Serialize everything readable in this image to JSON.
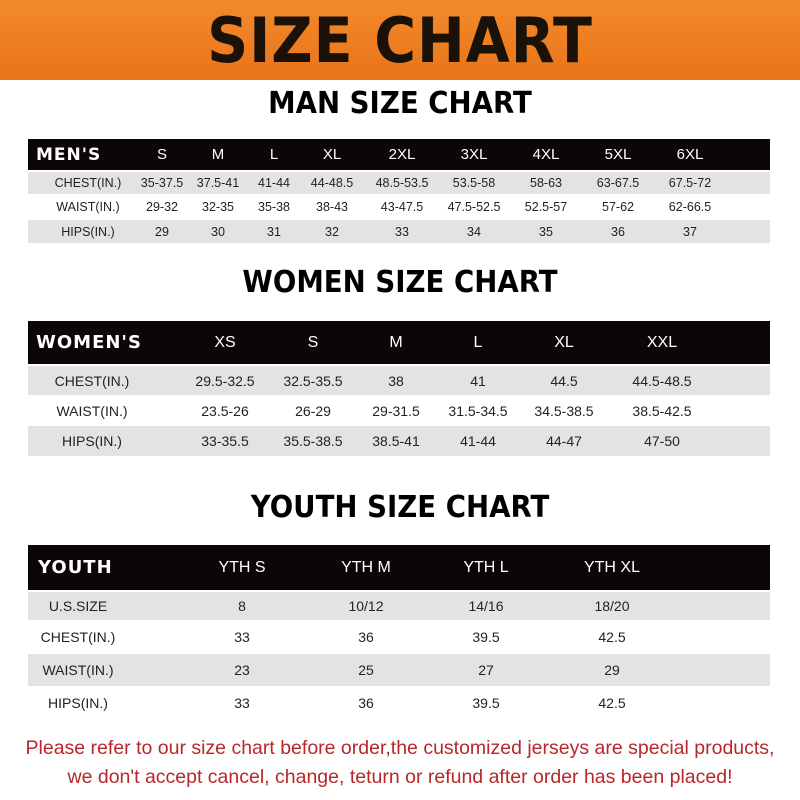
{
  "banner": {
    "title": "SIZE CHART",
    "color": "#ea7418"
  },
  "men": {
    "title": "MAN SIZE CHART",
    "header": [
      "MEN'S",
      "S",
      "M",
      "L",
      "XL",
      "2XL",
      "3XL",
      "4XL",
      "5XL",
      "6XL"
    ],
    "rows": [
      [
        "CHEST(IN.)",
        "35-37.5",
        "37.5-41",
        "41-44",
        "44-48.5",
        "48.5-53.5",
        "53.5-58",
        "58-63",
        "63-67.5",
        "67.5-72"
      ],
      [
        "WAIST(IN.)",
        "29-32",
        "32-35",
        "35-38",
        "38-43",
        "43-47.5",
        "47.5-52.5",
        "52.5-57",
        "57-62",
        "62-66.5"
      ],
      [
        "HIPS(IN.)",
        "29",
        "30",
        "31",
        "32",
        "33",
        "34",
        "35",
        "36",
        "37"
      ]
    ]
  },
  "women": {
    "title": "WOMEN SIZE CHART",
    "header": [
      "WOMEN'S",
      "XS",
      "S",
      "M",
      "L",
      "XL",
      "XXL"
    ],
    "rows": [
      [
        "CHEST(IN.)",
        "29.5-32.5",
        "32.5-35.5",
        "38",
        "41",
        "44.5",
        "44.5-48.5"
      ],
      [
        "WAIST(IN.)",
        "23.5-26",
        "26-29",
        "29-31.5",
        "31.5-34.5",
        "34.5-38.5",
        "38.5-42.5"
      ],
      [
        "HIPS(IN.)",
        "33-35.5",
        "35.5-38.5",
        "38.5-41",
        "41-44",
        "44-47",
        "47-50"
      ]
    ]
  },
  "youth": {
    "title": "YOUTH SIZE CHART",
    "header": [
      "YOUTH",
      "YTH S",
      "YTH M",
      "YTH L",
      "YTH XL"
    ],
    "rows": [
      [
        "U.S.SIZE",
        "8",
        "10/12",
        "14/16",
        "18/20"
      ],
      [
        "CHEST(IN.)",
        "33",
        "36",
        "39.5",
        "42.5"
      ],
      [
        "WAIST(IN.)",
        "23",
        "25",
        "27",
        "29"
      ],
      [
        "HIPS(IN.)",
        "33",
        "36",
        "39.5",
        "42.5"
      ]
    ]
  },
  "note": {
    "line1": "Please refer to our size chart before order,the customized jerseys are special products,",
    "line2": "we don't accept cancel, change, teturn or refund after order has been placed!",
    "color": "#b8272a"
  }
}
